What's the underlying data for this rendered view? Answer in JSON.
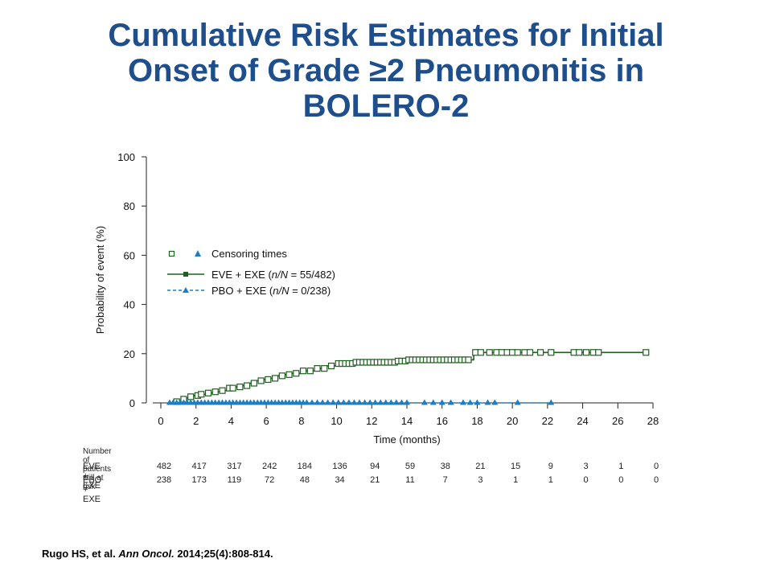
{
  "slide": {
    "title_lines": [
      "Cumulative Risk Estimates for Initial",
      "Onset of Grade ≥2 Pneumonitis in",
      "BOLERO-2"
    ],
    "citation": {
      "author": "Rugo HS, et al.",
      "journal": "Ann Oncol.",
      "ref": "2014;25(4):808-814."
    }
  },
  "chart_data": {
    "type": "line",
    "xlabel": "Time (months)",
    "ylabel": "Probability of event (%)",
    "xlim": [
      0,
      28
    ],
    "ylim": [
      0,
      100
    ],
    "x_ticks": [
      0,
      2,
      4,
      6,
      8,
      10,
      12,
      14,
      16,
      18,
      20,
      22,
      24,
      26,
      28
    ],
    "y_ticks": [
      0,
      20,
      40,
      60,
      80,
      100
    ],
    "legend": {
      "position": "middle-left",
      "censoring_label": "Censoring times",
      "entries": [
        {
          "prefix": "EVE + EXE (",
          "italic": "n/N",
          "suffix": " = 55/482)"
        },
        {
          "prefix": "PBO + EXE (",
          "italic": "n/N",
          "suffix": " = 0/238)"
        }
      ]
    },
    "series": [
      {
        "name": "EVE + EXE (n/N = 55/482)",
        "color": "#1e5e1e",
        "marker": "square",
        "style": "solid",
        "steps": [
          [
            0.4,
            0
          ],
          [
            0.8,
            0.5
          ],
          [
            1.0,
            1
          ],
          [
            1.2,
            1.5
          ],
          [
            1.4,
            2
          ],
          [
            1.6,
            2.5
          ],
          [
            1.8,
            3
          ],
          [
            2.2,
            3.5
          ],
          [
            2.6,
            4
          ],
          [
            3.0,
            4.5
          ],
          [
            3.4,
            5
          ],
          [
            3.8,
            6
          ],
          [
            4.2,
            6.5
          ],
          [
            4.6,
            7
          ],
          [
            5.0,
            8
          ],
          [
            5.4,
            9
          ],
          [
            5.8,
            9.5
          ],
          [
            6.2,
            10
          ],
          [
            6.6,
            11
          ],
          [
            7.0,
            11.5
          ],
          [
            7.4,
            12
          ],
          [
            8.0,
            13
          ],
          [
            8.8,
            14
          ],
          [
            9.4,
            15
          ],
          [
            10.0,
            16
          ],
          [
            11.0,
            16.5
          ],
          [
            13.5,
            17
          ],
          [
            14.0,
            17.5
          ],
          [
            17.8,
            20.5
          ],
          [
            27.6,
            20.5
          ]
        ],
        "censored": [
          0.9,
          1.3,
          1.7,
          2.1,
          2.3,
          2.7,
          3.1,
          3.5,
          3.9,
          4.1,
          4.5,
          4.9,
          5.3,
          5.7,
          6.1,
          6.5,
          6.9,
          7.3,
          7.7,
          8.1,
          8.5,
          8.9,
          9.3,
          9.7,
          10.1,
          10.3,
          10.5,
          10.7,
          10.9,
          11.1,
          11.3,
          11.5,
          11.7,
          11.9,
          12.1,
          12.3,
          12.5,
          12.7,
          12.9,
          13.1,
          13.3,
          13.5,
          13.7,
          13.9,
          14.1,
          14.3,
          14.5,
          14.7,
          14.9,
          15.1,
          15.3,
          15.5,
          15.7,
          15.9,
          16.1,
          16.3,
          16.5,
          16.7,
          16.9,
          17.1,
          17.3,
          17.5,
          17.9,
          18.2,
          18.7,
          19.1,
          19.4,
          19.7,
          20.0,
          20.3,
          20.7,
          21.0,
          21.6,
          22.2,
          23.5,
          23.8,
          24.2,
          24.6,
          24.9,
          27.6
        ]
      },
      {
        "name": "PBO + EXE (n/N = 0/238)",
        "color": "#1a7fc4",
        "marker": "triangle",
        "style": "dashed",
        "steps": [
          [
            0.4,
            0
          ],
          [
            22.2,
            0
          ]
        ],
        "censored": [
          0.5,
          0.7,
          0.9,
          1.1,
          1.3,
          1.5,
          1.7,
          1.9,
          2.1,
          2.3,
          2.5,
          2.7,
          2.9,
          3.1,
          3.3,
          3.5,
          3.7,
          3.9,
          4.1,
          4.3,
          4.5,
          4.7,
          4.9,
          5.1,
          5.3,
          5.5,
          5.7,
          5.9,
          6.1,
          6.3,
          6.5,
          6.7,
          6.9,
          7.1,
          7.3,
          7.5,
          7.7,
          7.9,
          8.1,
          8.3,
          8.6,
          8.9,
          9.2,
          9.5,
          9.8,
          10.1,
          10.4,
          10.7,
          11.0,
          11.3,
          11.6,
          11.9,
          12.2,
          12.5,
          12.8,
          13.1,
          13.4,
          13.7,
          14.0,
          15.0,
          15.5,
          16.0,
          16.5,
          17.2,
          17.6,
          18.0,
          18.6,
          19.0,
          20.3,
          22.2
        ]
      }
    ],
    "at_risk": {
      "header": "Number of patients still at risk",
      "x": [
        0,
        2,
        4,
        6,
        8,
        10,
        12,
        14,
        16,
        18,
        20,
        22,
        24,
        26,
        28
      ],
      "rows": [
        {
          "label": "EVE + EXE",
          "values": [
            "482",
            "417",
            "317",
            "242",
            "184",
            "136",
            "94",
            "59",
            "38",
            "21",
            "15",
            "9",
            "3",
            "1",
            "0"
          ]
        },
        {
          "label": "PBO + EXE",
          "values": [
            "238",
            "173",
            "119",
            "72",
            "48",
            "34",
            "21",
            "11",
            "7",
            "3",
            "1",
            "1",
            "0",
            "0",
            "0"
          ]
        }
      ]
    }
  }
}
